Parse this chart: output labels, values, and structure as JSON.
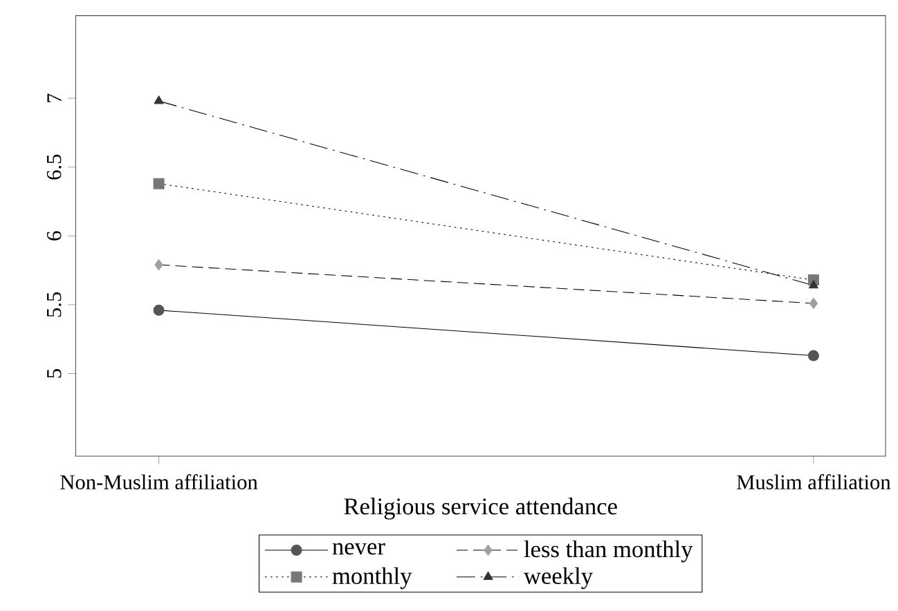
{
  "chart_data": {
    "type": "line",
    "xlabel": "Religious service attendance",
    "categories": [
      "Non-Muslim affiliation",
      "Muslim affiliation"
    ],
    "series": [
      {
        "name": "never",
        "color": "#555555",
        "marker": "circle",
        "line_style": "solid",
        "values": [
          5.46,
          5.13
        ]
      },
      {
        "name": "less than monthly",
        "color": "#a0a0a0",
        "marker": "diamond",
        "line_style": "dashed",
        "values": [
          5.79,
          5.51
        ]
      },
      {
        "name": "monthly",
        "color": "#777777",
        "marker": "square",
        "line_style": "dotted",
        "values": [
          6.38,
          5.68
        ]
      },
      {
        "name": "weekly",
        "color": "#333333",
        "marker": "triangle",
        "line_style": "dashdot",
        "values": [
          6.98,
          5.64
        ]
      }
    ],
    "ylim": [
      4.4,
      7.6
    ],
    "yticks": [
      5,
      5.5,
      6,
      6.5,
      7
    ],
    "grid": false,
    "legend": "bottom"
  }
}
